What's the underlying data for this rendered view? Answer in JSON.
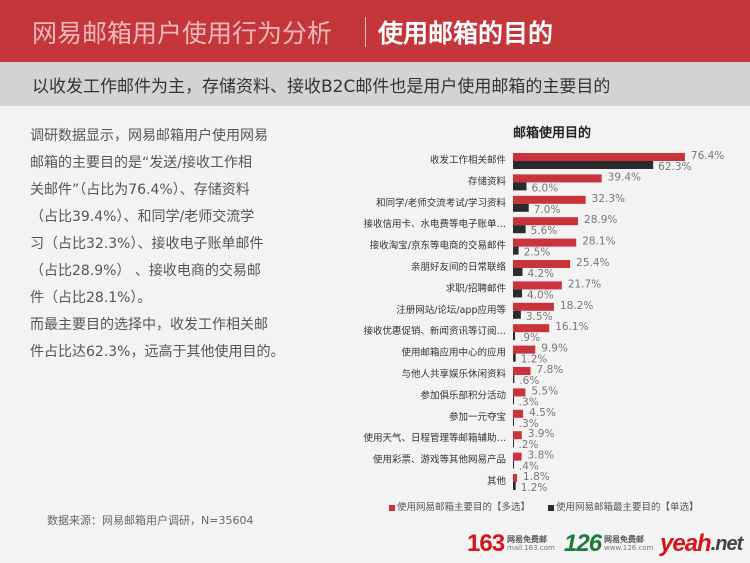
{
  "header": {
    "title": "网易邮箱用户使用行为分析",
    "subtitle": "使用邮箱的目的"
  },
  "banner": "以收发工作邮件为主，存储资料、接收B2C邮件也是用户使用邮箱的主要目的",
  "paragraph": [
    "调研数据显示，网易邮箱用户使用网易",
    "邮箱的主要目的是“发送/接收工作相",
    "关邮件”（占比为76.4%）、存储资料",
    "（占比39.4%）、和同学/老师交流学",
    "习（占比32.3%）、接收电子账单邮件",
    "（占比28.9%） 、接收电商的交易邮",
    "件（占比28.1%）。",
    "而最主要目的选择中，收发工作相关邮",
    "件占比达62.3%，远高于其他使用目的。"
  ],
  "source": "数据来源：网易邮箱用户调研，N=35604",
  "logos": [
    {
      "mark": "163",
      "name": "网易免费邮",
      "url": "mail.163.com",
      "color": "#d7141a"
    },
    {
      "mark": "126",
      "name": "网易免费邮",
      "url": "www.126.com",
      "color": "#1a7a3a"
    },
    {
      "mark": "yeah",
      "suffix": ".net",
      "name": "网易免费邮",
      "color": "#d7141a"
    }
  ],
  "chart_data": {
    "type": "bar",
    "orientation": "horizontal",
    "title": "邮箱使用目的",
    "categories": [
      "收发工作相关邮件",
      "存储资料",
      "和同学/老师交流考试/学习资料",
      "接收信用卡、水电费等电子账单…",
      "接收淘宝/京东等电商的交易邮件",
      "亲朋好友间的日常联络",
      "求职/招聘邮件",
      "注册网站/论坛/app应用等",
      "接收优惠促销、新闻资讯等订阅…",
      "使用邮箱应用中心的应用",
      "与他人共享娱乐休闲资料",
      "参加俱乐部积分活动",
      "参加一元夺宝",
      "使用天气、日程管理等邮箱辅助…",
      "使用彩票、游戏等其他网易产品",
      "其他"
    ],
    "series": [
      {
        "name": "使用网易邮箱主要目的【多选】",
        "color": "#c9343a",
        "values": [
          76.4,
          39.4,
          32.3,
          28.9,
          28.1,
          25.4,
          21.7,
          18.2,
          16.1,
          9.9,
          7.8,
          5.5,
          4.5,
          3.9,
          3.8,
          1.8
        ],
        "labels": [
          "76.4%",
          "39.4%",
          "32.3%",
          "28.9%",
          "28.1%",
          "25.4%",
          "21.7%",
          "18.2%",
          "16.1%",
          "9.9%",
          "7.8%",
          "5.5%",
          "4.5%",
          "3.9%",
          "3.8%",
          "1.8%"
        ]
      },
      {
        "name": "使用网易邮箱最主要目的【单选】",
        "color": "#2b2b2e",
        "values": [
          62.3,
          6.0,
          7.0,
          5.6,
          2.5,
          4.2,
          4.0,
          3.5,
          0.9,
          1.2,
          0.6,
          0.3,
          0.3,
          0.2,
          0.4,
          1.2
        ],
        "labels": [
          "62.3%",
          "6.0%",
          "7.0%",
          "5.6%",
          "2.5%",
          "4.2%",
          "4.0%",
          "3.5%",
          ".9%",
          "1.2%",
          ".6%",
          ".3%",
          ".3%",
          ".2%",
          ".4%",
          "1.2%"
        ]
      }
    ],
    "xlim": [
      0,
      100
    ],
    "grid": false,
    "legend": "bottom"
  }
}
